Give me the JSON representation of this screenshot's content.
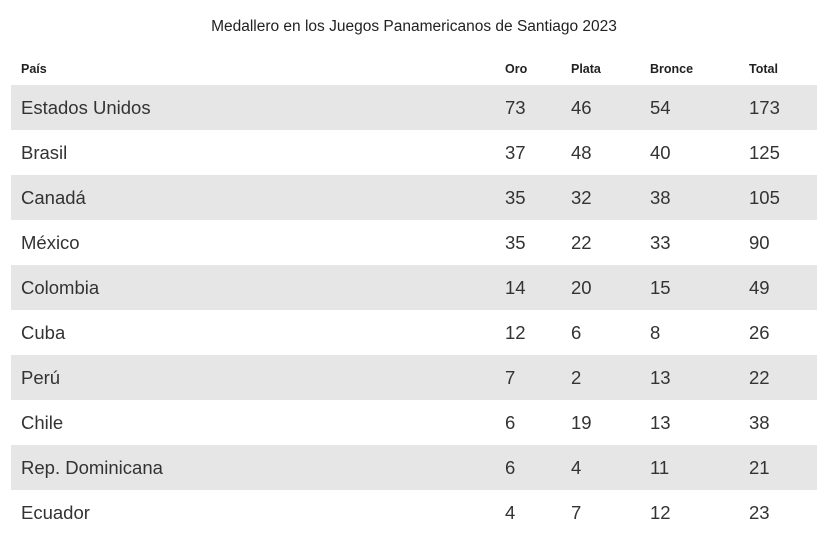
{
  "chart_data": {
    "type": "table",
    "title": "Medallero en los Juegos Panamericanos de Santiago 2023",
    "columns": [
      "País",
      "Oro",
      "Plata",
      "Bronce",
      "Total"
    ],
    "rows": [
      [
        "Estados Unidos",
        "73",
        "46",
        "54",
        "173"
      ],
      [
        "Brasil",
        "37",
        "48",
        "40",
        "125"
      ],
      [
        "Canadá",
        "35",
        "32",
        "38",
        "105"
      ],
      [
        "México",
        "35",
        "22",
        "33",
        "90"
      ],
      [
        "Colombia",
        "14",
        "20",
        "15",
        "49"
      ],
      [
        "Cuba",
        "12",
        "6",
        "8",
        "26"
      ],
      [
        "Perú",
        "7",
        "2",
        "13",
        "22"
      ],
      [
        "Chile",
        "6",
        "19",
        "13",
        "38"
      ],
      [
        "Rep. Dominicana",
        "6",
        "4",
        "11",
        "21"
      ],
      [
        "Ecuador",
        "4",
        "7",
        "12",
        "23"
      ]
    ]
  },
  "colors": {
    "row_stripe": "#e6e6e6",
    "row_plain": "#ffffff",
    "text": "#333333",
    "heading": "#222222"
  }
}
